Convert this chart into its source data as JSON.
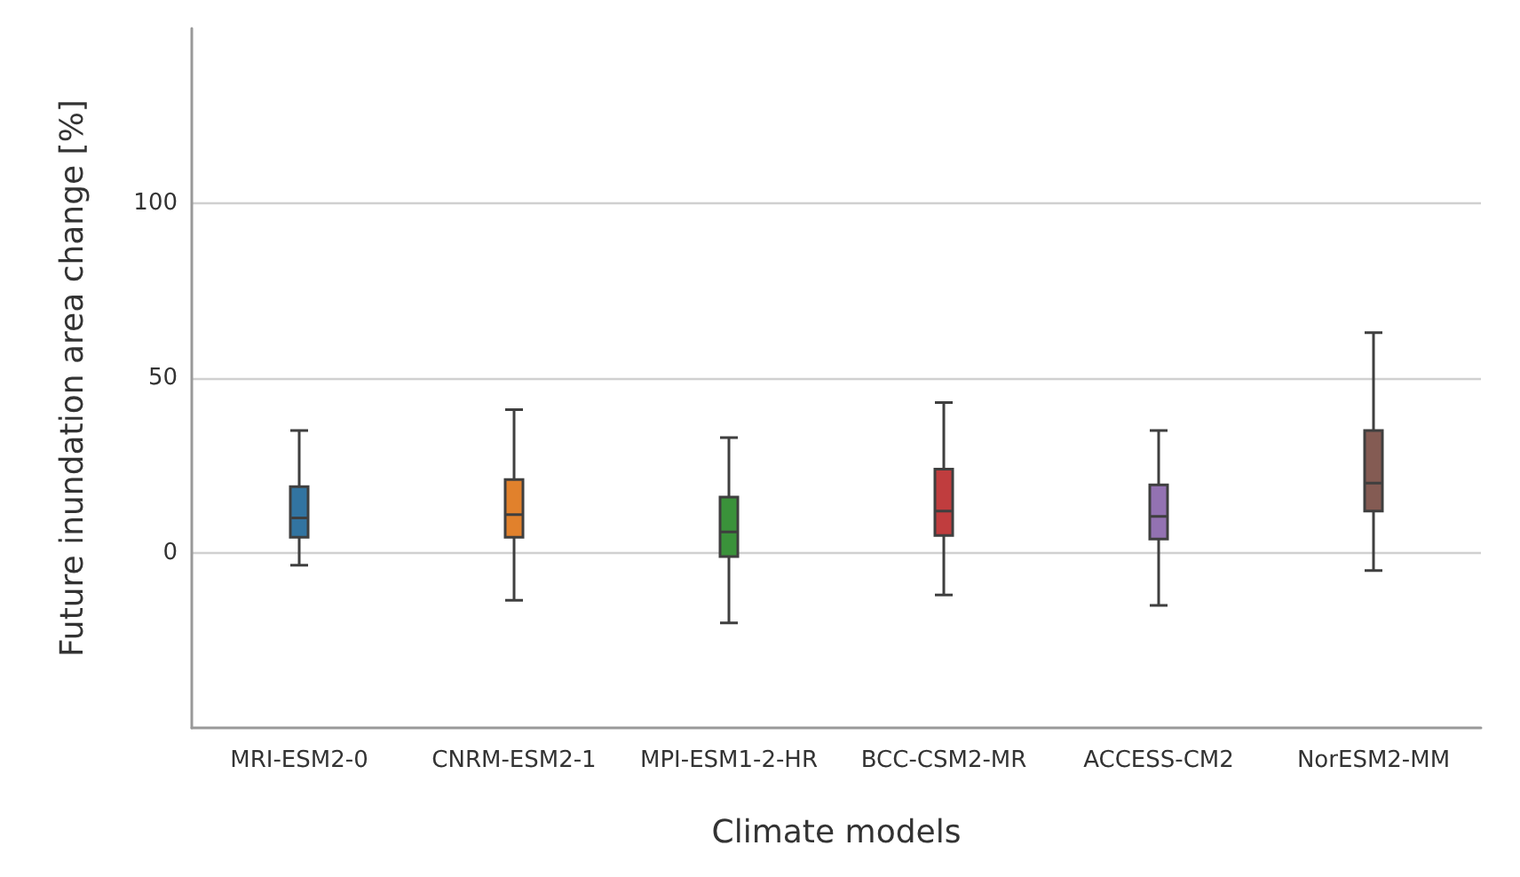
{
  "chart_data": {
    "type": "box",
    "xlabel": "Climate models",
    "ylabel": "Future inundation area change [%]",
    "categories": [
      "MRI-ESM2-0",
      "CNRM-ESM2-1",
      "MPI-ESM1-2-HR",
      "BCC-CSM2-MR",
      "ACCESS-CM2",
      "NorESM2-MM"
    ],
    "colors": [
      "#3274a1",
      "#e1812c",
      "#3a923a",
      "#c03d3e",
      "#9372b2",
      "#845b53"
    ],
    "boxes": [
      {
        "low": -3.5,
        "q1": 4.5,
        "median": 10,
        "q3": 19,
        "high": 35
      },
      {
        "low": -13.5,
        "q1": 4.5,
        "median": 11,
        "q3": 21,
        "high": 41
      },
      {
        "low": -20,
        "q1": -1,
        "median": 6,
        "q3": 16,
        "high": 33
      },
      {
        "low": -12,
        "q1": 5,
        "median": 12,
        "q3": 24,
        "high": 43
      },
      {
        "low": -15,
        "q1": 4,
        "median": 10.5,
        "q3": 19.5,
        "high": 35
      },
      {
        "low": -5,
        "q1": 12,
        "median": 20,
        "q3": 35,
        "high": 63
      }
    ],
    "ylim": [
      -50,
      150
    ],
    "yticks": [
      0,
      50,
      100
    ],
    "grid": "y"
  }
}
